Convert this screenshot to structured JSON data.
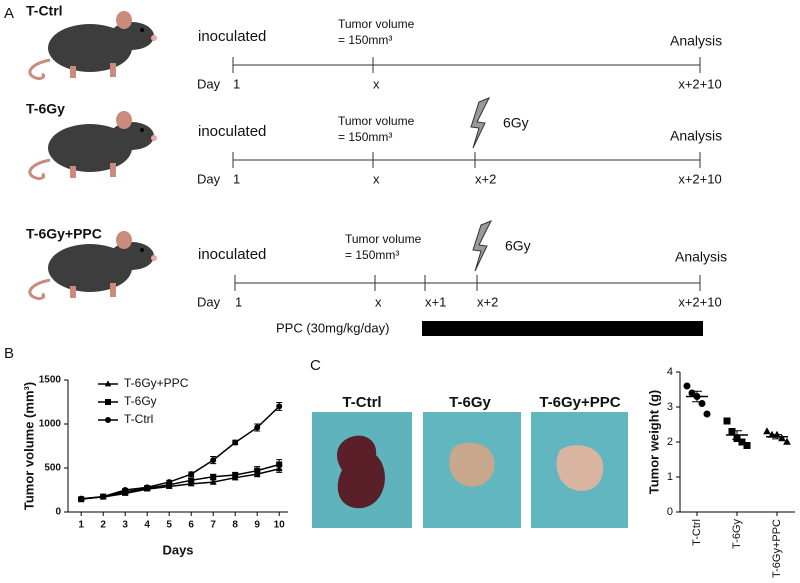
{
  "panel_labels": [
    "A",
    "B",
    "C"
  ],
  "timelines": [
    {
      "group": "T-Ctrl",
      "start": "inoculated",
      "tumor": [
        "Tumor volume",
        "= 150mm³"
      ],
      "end": "Analysis",
      "day": "Day",
      "ticks": [
        "1",
        "x",
        "x+2+10"
      ]
    },
    {
      "group": "T-6Gy",
      "start": "inoculated",
      "tumor": [
        "Tumor volume",
        "= 150mm³"
      ],
      "end": "Analysis",
      "dose": "6Gy",
      "day": "Day",
      "ticks": [
        "1",
        "x",
        "x+2",
        "x+2+10"
      ]
    },
    {
      "group": "T-6Gy+PPC",
      "start": "inoculated",
      "tumor": [
        "Tumor volume",
        "= 150mm³"
      ],
      "end": "Analysis",
      "dose": "6Gy",
      "day": "Day",
      "ticks": [
        "1",
        "x",
        "x+1",
        "x+2",
        "x+2+10"
      ]
    }
  ],
  "treatment": "PPC (30mg/kg/day)",
  "photo_labels": [
    "T-Ctrl",
    "T-6Gy",
    "T-6Gy+PPC"
  ],
  "chart_data": [
    {
      "type": "line",
      "x_label": "Days",
      "y_label": "Tumor volume (mm³)",
      "x": [
        1,
        2,
        3,
        4,
        5,
        6,
        7,
        8,
        9,
        10
      ],
      "xlim": [
        0.4,
        10.4
      ],
      "xticks": [
        1,
        2,
        3,
        4,
        5,
        6,
        7,
        8,
        9,
        10
      ],
      "ylim": [
        0,
        1500
      ],
      "yticks": [
        0,
        500,
        1000,
        1500
      ],
      "legend": "top-left",
      "series": [
        {
          "name": "T-6Gy+PPC",
          "color": "#000000",
          "marker": "triangle",
          "values": [
            150,
            170,
            210,
            260,
            290,
            320,
            340,
            390,
            430,
            490
          ],
          "errors": [
            10,
            10,
            15,
            15,
            20,
            20,
            25,
            25,
            30,
            40
          ]
        },
        {
          "name": "T-6Gy",
          "color": "#000000",
          "marker": "square",
          "values": [
            145,
            175,
            230,
            270,
            310,
            360,
            400,
            420,
            470,
            540
          ],
          "errors": [
            10,
            10,
            15,
            15,
            20,
            25,
            25,
            30,
            45,
            55
          ]
        },
        {
          "name": "T-Ctrl",
          "color": "#000000",
          "marker": "circle",
          "values": [
            150,
            175,
            250,
            280,
            340,
            430,
            590,
            790,
            960,
            1200
          ],
          "errors": [
            10,
            10,
            15,
            20,
            20,
            25,
            40,
            25,
            40,
            45
          ]
        }
      ]
    },
    {
      "type": "dotplot",
      "y_label": "Tumor weight (g)",
      "categories": [
        "T-Ctrl",
        "T-6Gy",
        "T-6Gy+PPC"
      ],
      "markers": [
        "circle",
        "square",
        "triangle"
      ],
      "points": [
        [
          3.6,
          3.4,
          3.3,
          3.1,
          2.8
        ],
        [
          2.6,
          2.3,
          2.1,
          2.0,
          1.9
        ],
        [
          2.3,
          2.2,
          2.2,
          2.1,
          2.0
        ]
      ],
      "means": [
        3.3,
        2.2,
        2.15
      ],
      "sems": [
        0.15,
        0.12,
        0.06
      ],
      "ylim": [
        0,
        4
      ],
      "yticks": [
        0,
        1,
        2,
        3,
        4
      ],
      "color": "#000000"
    }
  ]
}
